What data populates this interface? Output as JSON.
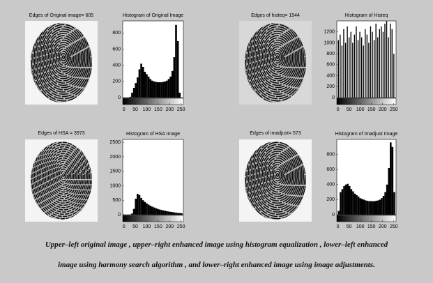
{
  "images": [
    {
      "title": "Edges of Original image= 605"
    },
    {
      "title": "Edges of histeq= 1544"
    },
    {
      "title": "Edges of HSA = 3973"
    },
    {
      "title": "Edges of imadjust= 573"
    }
  ],
  "chart_data": [
    {
      "type": "histogram",
      "title": "Histogram of Original Image",
      "color": "#000000",
      "bins": [
        0,
        8,
        16,
        24,
        32,
        40,
        48,
        56,
        64,
        72,
        80,
        88,
        96,
        104,
        112,
        120,
        128,
        136,
        144,
        152,
        160,
        168,
        176,
        184,
        192,
        200,
        208,
        216,
        224,
        232,
        240,
        248,
        256
      ],
      "values": [
        0,
        0,
        0,
        10,
        60,
        120,
        180,
        250,
        350,
        420,
        380,
        320,
        290,
        260,
        230,
        210,
        200,
        195,
        190,
        190,
        190,
        195,
        200,
        210,
        230,
        260,
        330,
        500,
        900,
        700,
        60,
        0
      ],
      "xlim": [
        -5,
        260
      ],
      "xticks": [
        0,
        50,
        100,
        150,
        200,
        250
      ],
      "ylim": [
        0,
        950
      ],
      "yticks": [
        0,
        200,
        400,
        600,
        800
      ]
    },
    {
      "type": "histogram",
      "title": "Histogram of Histeq",
      "color": "#000000",
      "bins": [
        0,
        8,
        16,
        24,
        32,
        40,
        48,
        56,
        64,
        72,
        80,
        88,
        96,
        104,
        112,
        120,
        128,
        136,
        144,
        152,
        160,
        168,
        176,
        184,
        192,
        200,
        208,
        216,
        224,
        232,
        240,
        248,
        256
      ],
      "values": [
        1050,
        1150,
        950,
        1250,
        1000,
        1300,
        1100,
        1200,
        1000,
        1150,
        1300,
        1050,
        1200,
        1100,
        950,
        1250,
        1150,
        1000,
        1300,
        1200,
        1050,
        1350,
        1100,
        1250,
        1300,
        1200,
        1350,
        1400,
        1100,
        1350,
        1250,
        800
      ],
      "xlim": [
        -5,
        260
      ],
      "xticks": [
        0,
        50,
        100,
        150,
        200,
        250
      ],
      "ylim": [
        0,
        1400
      ],
      "yticks": [
        0,
        200,
        400,
        600,
        800,
        1000,
        1200
      ]
    },
    {
      "type": "histogram",
      "title": "Histogram of HSA Image",
      "color": "#000000",
      "bins": [
        0,
        8,
        16,
        24,
        32,
        40,
        48,
        56,
        64,
        72,
        80,
        88,
        96,
        104,
        112,
        120,
        128,
        136,
        144,
        152,
        160,
        168,
        176,
        184,
        192,
        200,
        208,
        216,
        224,
        232,
        240,
        248,
        256
      ],
      "values": [
        0,
        0,
        0,
        5,
        40,
        200,
        550,
        720,
        680,
        580,
        500,
        440,
        390,
        350,
        310,
        280,
        250,
        225,
        200,
        180,
        165,
        150,
        135,
        120,
        110,
        100,
        90,
        80,
        70,
        60,
        55,
        50
      ],
      "xlim": [
        -5,
        260
      ],
      "xticks": [
        0,
        50,
        100,
        150,
        200,
        250
      ],
      "ylim": [
        0,
        2600
      ],
      "yticks": [
        0,
        500,
        1000,
        1500,
        2000,
        2500
      ]
    },
    {
      "type": "histogram",
      "title": "Histogram of Imadjust Image",
      "color": "#000000",
      "bins": [
        0,
        8,
        16,
        24,
        32,
        40,
        48,
        56,
        64,
        72,
        80,
        88,
        96,
        104,
        112,
        120,
        128,
        136,
        144,
        152,
        160,
        168,
        176,
        184,
        192,
        200,
        208,
        216,
        224,
        232,
        240,
        248,
        256
      ],
      "values": [
        50,
        300,
        340,
        380,
        400,
        410,
        380,
        340,
        310,
        280,
        260,
        240,
        220,
        210,
        200,
        190,
        185,
        180,
        180,
        180,
        180,
        185,
        190,
        200,
        220,
        250,
        300,
        400,
        620,
        960,
        900,
        300
      ],
      "xlim": [
        -5,
        260
      ],
      "xticks": [
        0,
        50,
        100,
        150,
        200,
        250
      ],
      "ylim": [
        0,
        1000
      ],
      "yticks": [
        0,
        200,
        400,
        600,
        800
      ]
    }
  ],
  "caption": [
    "Upper–left original image , upper–right enhanced image using histogram equalization , lower–left enhanced",
    "image using harmony search algorithm , and lower–right enhanced image using image adjustments."
  ]
}
